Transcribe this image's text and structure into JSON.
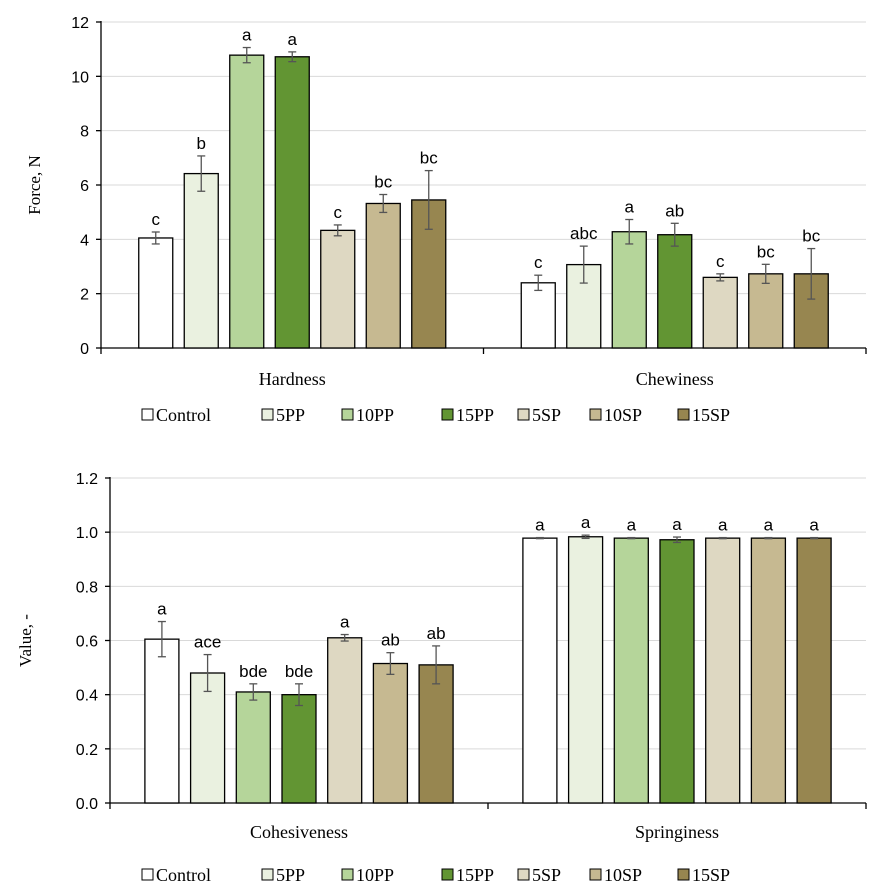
{
  "colors": {
    "Control": "#ffffff",
    "5PP": "#eaf1e0",
    "10PP": "#b5d59a",
    "15PP": "#629533",
    "5SP": "#ded8c2",
    "10SP": "#c6b991",
    "15SP": "#978650"
  },
  "chart_data": [
    {
      "type": "bar",
      "title": "",
      "xlabel": "",
      "ylabel": "Force, N",
      "ylim": [
        0,
        12
      ],
      "yticks": [
        "0",
        "2",
        "4",
        "6",
        "8",
        "10",
        "12"
      ],
      "grid": true,
      "legend_position": "bottom",
      "categories": [
        "Hardness",
        "Chewiness"
      ],
      "series": [
        {
          "name": "Control",
          "values": [
            4.05,
            2.4
          ],
          "errors": [
            0.22,
            0.28
          ],
          "labels": [
            "c",
            "c"
          ]
        },
        {
          "name": "5PP",
          "values": [
            6.42,
            3.07
          ],
          "errors": [
            0.65,
            0.68
          ],
          "labels": [
            "b",
            "abc"
          ]
        },
        {
          "name": "10PP",
          "values": [
            10.78,
            4.28
          ],
          "errors": [
            0.28,
            0.45
          ],
          "labels": [
            "a",
            "a"
          ]
        },
        {
          "name": "15PP",
          "values": [
            10.72,
            4.17
          ],
          "errors": [
            0.18,
            0.42
          ],
          "labels": [
            "a",
            "ab"
          ]
        },
        {
          "name": "5SP",
          "values": [
            4.33,
            2.6
          ],
          "errors": [
            0.2,
            0.13
          ],
          "labels": [
            "c",
            "c"
          ]
        },
        {
          "name": "10SP",
          "values": [
            5.32,
            2.73
          ],
          "errors": [
            0.33,
            0.35
          ],
          "labels": [
            "bc",
            "bc"
          ]
        },
        {
          "name": "15SP",
          "values": [
            5.45,
            2.73
          ],
          "errors": [
            1.08,
            0.93
          ],
          "labels": [
            "bc",
            "bc"
          ]
        }
      ]
    },
    {
      "type": "bar",
      "title": "",
      "xlabel": "",
      "ylabel": "Value, -",
      "ylim": [
        0,
        1.2
      ],
      "yticks": [
        "0.0",
        "0.2",
        "0.4",
        "0.6",
        "0.8",
        "1.0",
        "1.2"
      ],
      "grid": true,
      "legend_position": "bottom",
      "categories": [
        "Cohesiveness",
        "Springiness"
      ],
      "series": [
        {
          "name": "Control",
          "values": [
            0.605,
            0.978
          ],
          "errors": [
            0.065,
            0.002
          ],
          "labels": [
            "a",
            "a"
          ]
        },
        {
          "name": "5PP",
          "values": [
            0.48,
            0.983
          ],
          "errors": [
            0.068,
            0.006
          ],
          "labels": [
            "ace",
            "a"
          ]
        },
        {
          "name": "10PP",
          "values": [
            0.41,
            0.978
          ],
          "errors": [
            0.03,
            0.002
          ],
          "labels": [
            "bde",
            "a"
          ]
        },
        {
          "name": "15PP",
          "values": [
            0.4,
            0.972
          ],
          "errors": [
            0.04,
            0.01
          ],
          "labels": [
            "bde",
            "a"
          ]
        },
        {
          "name": "5SP",
          "values": [
            0.61,
            0.978
          ],
          "errors": [
            0.012,
            0.002
          ],
          "labels": [
            "a",
            "a"
          ]
        },
        {
          "name": "10SP",
          "values": [
            0.515,
            0.978
          ],
          "errors": [
            0.04,
            0.002
          ],
          "labels": [
            "ab",
            "a"
          ]
        },
        {
          "name": "15SP",
          "values": [
            0.51,
            0.978
          ],
          "errors": [
            0.07,
            0.002
          ],
          "labels": [
            "ab",
            "a"
          ]
        }
      ]
    }
  ]
}
